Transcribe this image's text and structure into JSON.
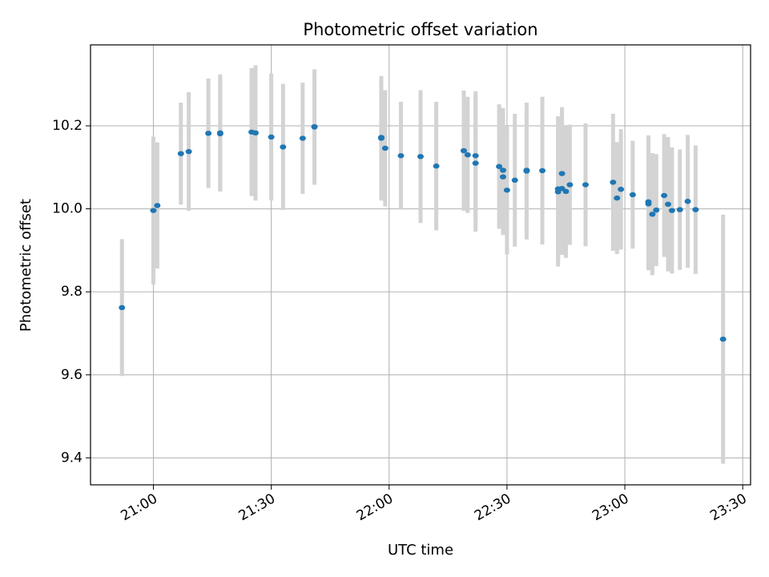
{
  "chart_data": {
    "type": "scatter",
    "title": "Photometric offset variation",
    "xlabel": "UTC time",
    "ylabel": "Photometric offset",
    "grid": true,
    "legend": "none",
    "x_ticks": [
      "21:00",
      "21:30",
      "22:00",
      "22:30",
      "23:00",
      "23:30"
    ],
    "y_ticks": [
      "9.4",
      "9.6",
      "9.8",
      "10.0",
      "10.2"
    ],
    "xlim": [
      "20:44",
      "23:32"
    ],
    "ylim": [
      9.335,
      10.395
    ],
    "errorbar_color": "#d3d3d3",
    "marker_color": "#1f77b4",
    "series": [
      {
        "x": [
          "20:52",
          "21:00",
          "21:01",
          "21:07",
          "21:09",
          "21:14",
          "21:17",
          "21:17",
          "21:25",
          "21:26",
          "21:30",
          "21:33",
          "21:38",
          "21:41",
          "21:41",
          "21:58",
          "21:58",
          "21:59",
          "22:03",
          "22:08",
          "22:12",
          "22:19",
          "22:20",
          "22:22",
          "22:22",
          "22:28",
          "22:29",
          "22:29",
          "22:30",
          "22:32",
          "22:35",
          "22:35",
          "22:39",
          "22:43",
          "22:43",
          "22:44",
          "22:44",
          "22:45",
          "22:46",
          "22:50",
          "22:57",
          "22:58",
          "22:59",
          "23:02",
          "23:06",
          "23:06",
          "23:07",
          "23:08",
          "23:10",
          "23:11",
          "23:12",
          "23:14",
          "23:16",
          "23:18",
          "23:25"
        ],
        "y": [
          9.762,
          9.996,
          10.008,
          10.133,
          10.138,
          10.182,
          10.181,
          10.183,
          10.185,
          10.183,
          10.173,
          10.149,
          10.17,
          10.197,
          10.198,
          10.172,
          10.17,
          10.146,
          10.128,
          10.126,
          10.103,
          10.14,
          10.13,
          10.11,
          10.128,
          10.102,
          10.093,
          10.077,
          10.045,
          10.069,
          10.091,
          10.093,
          10.092,
          10.041,
          10.048,
          10.085,
          10.049,
          10.042,
          10.058,
          10.058,
          10.064,
          10.026,
          10.047,
          10.034,
          10.017,
          10.012,
          9.987,
          9.997,
          10.032,
          10.011,
          9.996,
          9.998,
          10.018,
          9.998,
          9.686
        ],
        "err": [
          0.165,
          0.178,
          0.152,
          0.123,
          0.143,
          0.132,
          0.139,
          0.141,
          0.154,
          0.163,
          0.153,
          0.152,
          0.134,
          0.139,
          0.12,
          0.134,
          0.15,
          0.14,
          0.13,
          0.16,
          0.155,
          0.145,
          0.14,
          0.165,
          0.155,
          0.15,
          0.15,
          0.14,
          0.155,
          0.16,
          0.165,
          0.15,
          0.178,
          0.18,
          0.175,
          0.16,
          0.16,
          0.16,
          0.145,
          0.148,
          0.165,
          0.135,
          0.145,
          0.13,
          0.16,
          0.16,
          0.147,
          0.135,
          0.148,
          0.162,
          0.152,
          0.145,
          0.16,
          0.155,
          0.3
        ]
      }
    ]
  }
}
